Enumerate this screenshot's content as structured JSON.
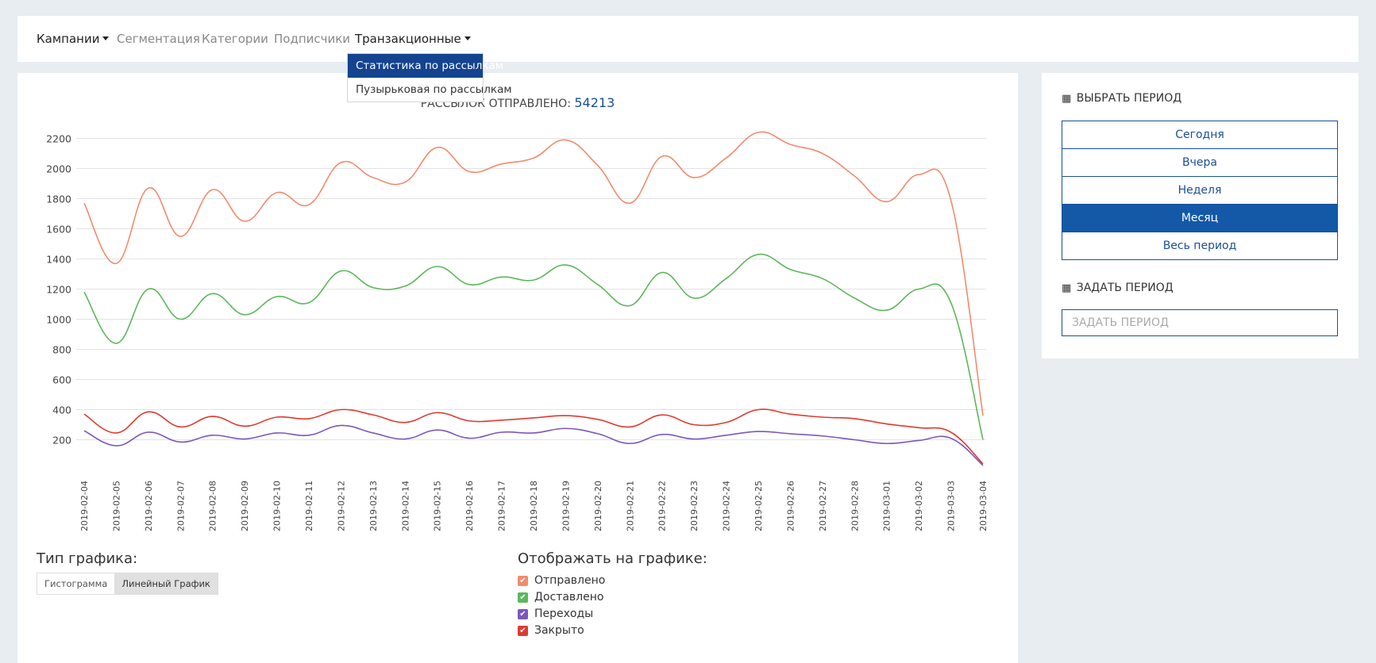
{
  "nav": {
    "items": [
      {
        "label": "Кампании",
        "caret": true
      },
      {
        "label": "Сегментация"
      },
      {
        "label": "Категории"
      },
      {
        "label": "Подписчики"
      },
      {
        "label": "Транзакционные",
        "caret": true
      }
    ],
    "dropdown": [
      {
        "label": "Статистика по рассылкам",
        "active": true
      },
      {
        "label": "Пузырьковая по рассылкам"
      }
    ]
  },
  "chart_header": {
    "label": "РАССЫЛОК ОТПРАВЛЕНО:",
    "value": "54213"
  },
  "chart_data": {
    "type": "line",
    "x": [
      "2019-02-04",
      "2019-02-05",
      "2019-02-06",
      "2019-02-07",
      "2019-02-08",
      "2019-02-09",
      "2019-02-10",
      "2019-02-11",
      "2019-02-12",
      "2019-02-13",
      "2019-02-14",
      "2019-02-15",
      "2019-02-16",
      "2019-02-17",
      "2019-02-18",
      "2019-02-19",
      "2019-02-20",
      "2019-02-21",
      "2019-02-22",
      "2019-02-23",
      "2019-02-24",
      "2019-02-25",
      "2019-02-26",
      "2019-02-27",
      "2019-02-28",
      "2019-03-01",
      "2019-03-02",
      "2019-03-03",
      "2019-03-04"
    ],
    "yticks": [
      "200",
      "400",
      "600",
      "800",
      "1000",
      "1200",
      "1400",
      "1600",
      "1800",
      "2000",
      "2200"
    ],
    "ylim": [
      0,
      2200
    ],
    "grid": true,
    "series": [
      {
        "name": "Отправлено",
        "color": "#f28b6c",
        "values": [
          1770,
          1370,
          1870,
          1550,
          1860,
          1650,
          1840,
          1760,
          2040,
          1940,
          1910,
          2140,
          1980,
          2030,
          2070,
          2190,
          2020,
          1770,
          2080,
          1940,
          2070,
          2240,
          2160,
          2100,
          1950,
          1780,
          1960,
          1790,
          360
        ]
      },
      {
        "name": "Доставлено",
        "color": "#5cb85c",
        "values": [
          1180,
          840,
          1200,
          1000,
          1170,
          1030,
          1150,
          1110,
          1320,
          1210,
          1220,
          1350,
          1230,
          1280,
          1260,
          1360,
          1230,
          1090,
          1310,
          1140,
          1270,
          1430,
          1330,
          1270,
          1140,
          1060,
          1200,
          1110,
          200
        ]
      },
      {
        "name": "Переходы",
        "color": "#7b57bd",
        "values": [
          260,
          160,
          250,
          185,
          230,
          205,
          245,
          230,
          295,
          245,
          205,
          265,
          210,
          250,
          245,
          275,
          240,
          175,
          235,
          205,
          230,
          255,
          240,
          225,
          200,
          175,
          195,
          210,
          30
        ]
      },
      {
        "name": "Закрыто",
        "color": "#e03a2f",
        "values": [
          370,
          245,
          385,
          285,
          355,
          290,
          350,
          340,
          400,
          365,
          315,
          380,
          325,
          330,
          345,
          360,
          335,
          285,
          365,
          300,
          315,
          400,
          370,
          350,
          340,
          305,
          280,
          250,
          40
        ]
      }
    ]
  },
  "chart_type": {
    "title": "Тип графика:",
    "buttons": [
      {
        "label": "Гистограмма",
        "active": false
      },
      {
        "label": "Линейный График",
        "active": true
      }
    ]
  },
  "display": {
    "title": "Отображать на графике:",
    "items": [
      {
        "label": "Отправлено",
        "color": "#f28b6c",
        "checked": true
      },
      {
        "label": "Доставлено",
        "color": "#5cb85c",
        "checked": true
      },
      {
        "label": "Переходы",
        "color": "#7b57bd",
        "checked": true
      },
      {
        "label": "Закрыто",
        "color": "#e03a2f",
        "checked": true
      }
    ]
  },
  "side": {
    "choose_heading": "ВЫБРАТЬ ПЕРИОД",
    "periods": [
      {
        "label": "Сегодня",
        "active": false
      },
      {
        "label": "Вчера",
        "active": false
      },
      {
        "label": "Неделя",
        "active": false
      },
      {
        "label": "Месяц",
        "active": true
      },
      {
        "label": "Весь период",
        "active": false
      }
    ],
    "set_heading": "ЗАДАТЬ ПЕРИОД",
    "input_placeholder": "ЗАДАТЬ ПЕРИОД",
    "input_value": ""
  }
}
